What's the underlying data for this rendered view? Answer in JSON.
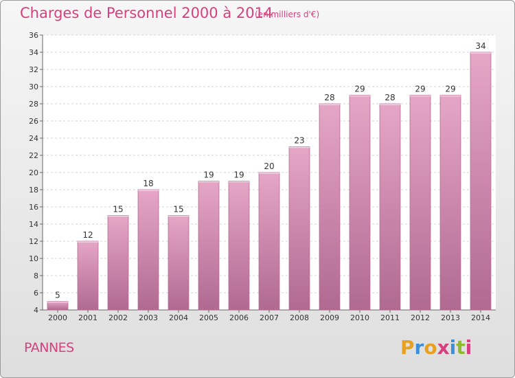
{
  "chart_data": {
    "type": "bar",
    "title": "Charges de Personnel 2000 à 2014",
    "subtitle": "(en milliers d'€)",
    "categories": [
      "2000",
      "2001",
      "2002",
      "2003",
      "2004",
      "2005",
      "2006",
      "2007",
      "2008",
      "2009",
      "2010",
      "2011",
      "2012",
      "2013",
      "2014"
    ],
    "values": [
      5,
      12,
      15,
      18,
      15,
      19,
      19,
      20,
      23,
      28,
      29,
      28,
      29,
      29,
      34
    ],
    "yticks": [
      "4",
      "6",
      "8",
      "10",
      "12",
      "14",
      "16",
      "18",
      "20",
      "22",
      "24",
      "26",
      "28",
      "30",
      "32",
      "34",
      "36"
    ],
    "ylim": [
      4,
      36
    ],
    "grid": true,
    "bar_color": "#d880ad"
  },
  "footer": {
    "commune": "PANNES",
    "logo": [
      "P",
      "r",
      "o",
      "x",
      "i",
      "t",
      "i"
    ],
    "logo_colors": [
      "#e8a020",
      "#3f8fd8",
      "#e8a020",
      "#d6407e",
      "#3f8fd8",
      "#8dbb2e",
      "#d6407e"
    ]
  }
}
